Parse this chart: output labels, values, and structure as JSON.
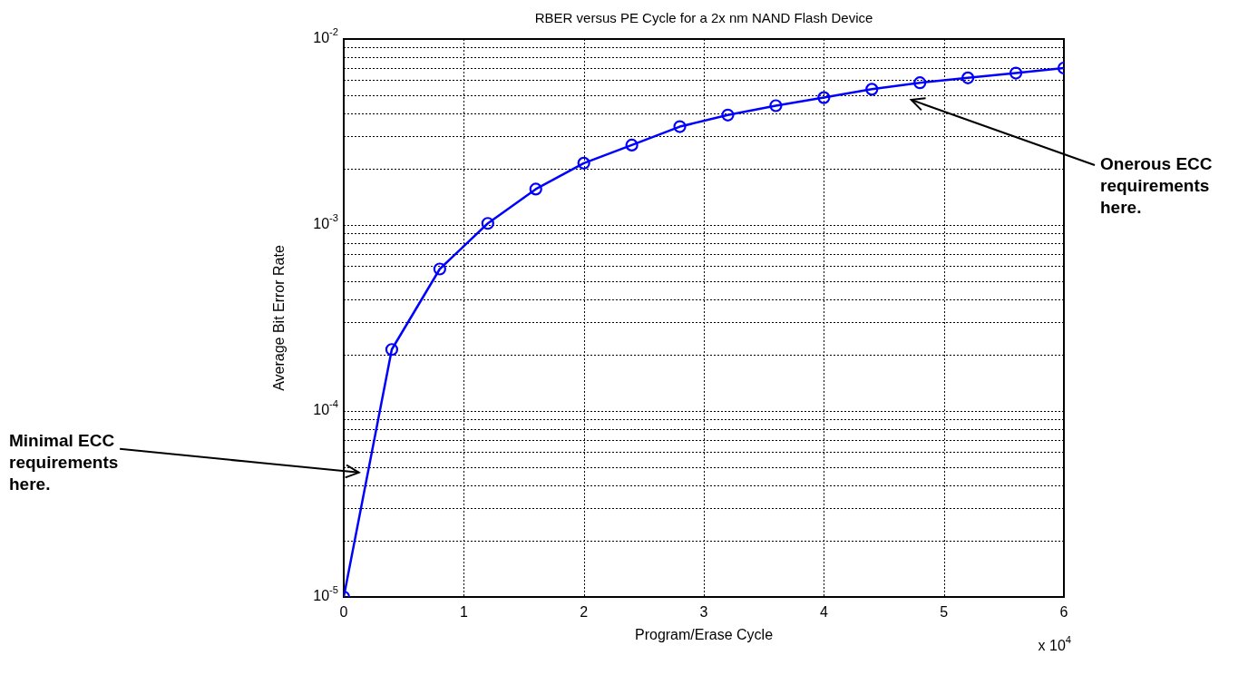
{
  "chart_data": {
    "type": "line",
    "title": "RBER versus PE Cycle for a 2x nm NAND Flash Device",
    "xlabel": "Program/Erase Cycle",
    "ylabel": "Average Bit Error Rate",
    "x": [
      0,
      0.4,
      0.8,
      1.2,
      1.6,
      2,
      2.4,
      2.8,
      3.2,
      3.6,
      4,
      4.4,
      4.8,
      5.2,
      5.6,
      6
    ],
    "series": [
      {
        "color": "#0000ff",
        "values": [
          1e-05,
          0.000214,
          0.00058,
          0.00102,
          0.00156,
          0.00215,
          0.00269,
          0.00338,
          0.0039,
          0.00438,
          0.00484,
          0.00537,
          0.00582,
          0.00618,
          0.00656,
          0.00698
        ]
      }
    ],
    "xlim": [
      0,
      6
    ],
    "xticks": [
      0,
      1,
      2,
      3,
      4,
      5,
      6
    ],
    "ylim": [
      1e-05,
      0.01
    ],
    "yticks": [
      {
        "value": 1e-05,
        "label": "10$^{-5}$"
      },
      {
        "value": 0.0001,
        "label": "10$^{-4}$"
      },
      {
        "value": 0.001,
        "label": "10$^{-3}$"
      },
      {
        "value": 0.01,
        "label": "10$^{-2}$"
      }
    ],
    "log": "y",
    "grid": true,
    "marker": "circle",
    "line_style": "solid",
    "annotations": [
      "x 10$^{4}$",
      "Minimal ECC requirements here.",
      "Onerous ECC requirements here."
    ]
  }
}
